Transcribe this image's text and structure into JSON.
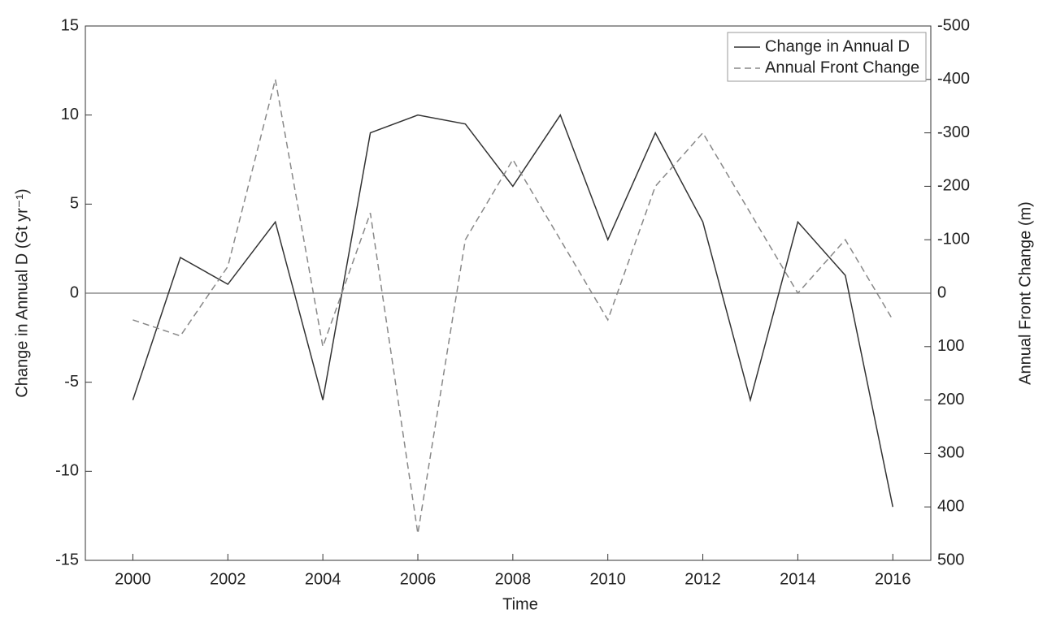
{
  "chart_data": {
    "type": "line",
    "x_label": "Time",
    "y_label": "Change in Annual D (Gt yr⁻¹)",
    "y2_label": "Annual Front Change (m)",
    "x": [
      2000,
      2001,
      2002,
      2003,
      2004,
      2005,
      2006,
      2007,
      2008,
      2009,
      2010,
      2011,
      2012,
      2013,
      2014,
      2015,
      2016
    ],
    "xlim": [
      1999,
      2016.8
    ],
    "xticks": [
      2000,
      2002,
      2004,
      2006,
      2008,
      2010,
      2012,
      2014,
      2016
    ],
    "ylim": [
      -15,
      15
    ],
    "yticks": [
      -15,
      -10,
      -5,
      0,
      5,
      10,
      15
    ],
    "y2lim": [
      500,
      -500
    ],
    "y2ticks": [
      500,
      400,
      300,
      200,
      100,
      0,
      -100,
      -200,
      -300,
      -400,
      -500
    ],
    "legend": "upper right",
    "series": [
      {
        "name": "Change in Annual D",
        "color": "#333333",
        "dash": "solid",
        "values": [
          -6,
          2,
          0.5,
          4,
          -6,
          9,
          10,
          9.5,
          6,
          10,
          3,
          9,
          4,
          -6,
          4,
          1,
          -12
        ]
      },
      {
        "name": "Annual Front Change",
        "color": "#888888",
        "dash": "dashed",
        "axis": "y2",
        "values": [
          50,
          80,
          -50,
          -400,
          100,
          -150,
          450,
          -100,
          -250,
          -100,
          50,
          -200,
          -300,
          -150,
          0,
          -100,
          50
        ]
      }
    ]
  }
}
